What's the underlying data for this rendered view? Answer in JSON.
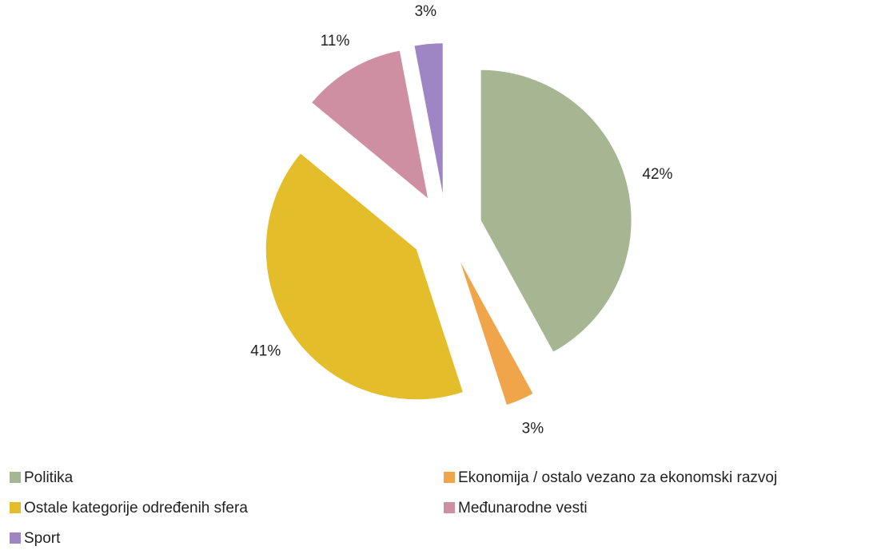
{
  "chart_data": {
    "type": "pie",
    "categories": [
      "Politika",
      "Ekonomija / ostalo vezano za ekonomski razvoj",
      "Ostale kategorije određenih sfera",
      "Međunarodne vesti",
      "Sport"
    ],
    "values": [
      42,
      3,
      41,
      11,
      3
    ],
    "value_labels": [
      "42%",
      "3%",
      "41%",
      "11%",
      "3%"
    ],
    "colors": [
      "#a6b592",
      "#f0a54a",
      "#e4bd2b",
      "#cf8fa3",
      "#9e86c4"
    ],
    "legend": "bottom"
  }
}
